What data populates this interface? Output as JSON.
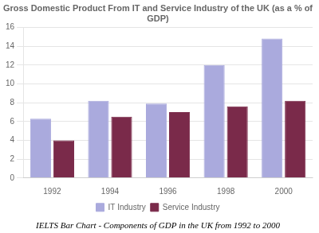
{
  "chart_data": {
    "type": "bar",
    "title": "Gross Domestic Product From IT and Service Industry of the UK (as a % of\nGDP)",
    "caption": "IELTS Bar Chart - Components of GDP in the UK from 1992 to 2000",
    "categories": [
      "1992",
      "1994",
      "1996",
      "1998",
      "2000"
    ],
    "series": [
      {
        "name": "IT Industry",
        "color": "#aaaadd",
        "values": [
          6.3,
          8.2,
          7.9,
          12.0,
          14.8
        ]
      },
      {
        "name": "Service Industry",
        "color": "#7a2a4a",
        "values": [
          4.0,
          6.5,
          7.0,
          7.6,
          8.2
        ]
      }
    ],
    "ylim": [
      0,
      16
    ],
    "yticks": [
      0,
      2,
      4,
      6,
      8,
      10,
      12,
      14,
      16
    ],
    "grid": true,
    "legend": "bottom"
  }
}
